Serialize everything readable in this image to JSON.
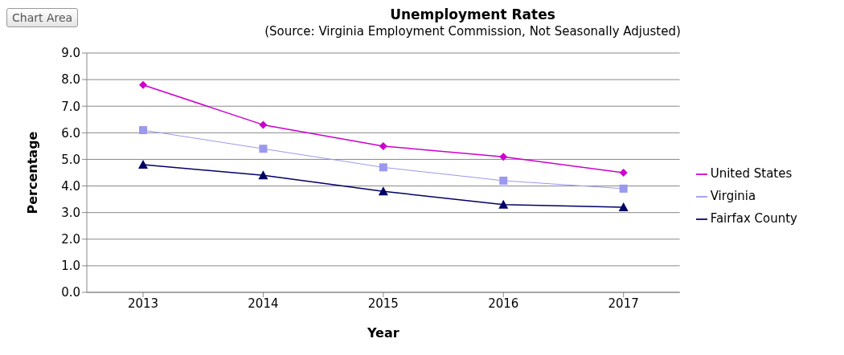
{
  "chart_data": {
    "type": "line",
    "title": "Unemployment Rates",
    "subtitle": "(Source: Virginia Employment Commission, Not Seasonally Adjusted)",
    "xlabel": "Year",
    "ylabel": "Percentage",
    "annotations": [
      "Chart Area"
    ],
    "categories": [
      "2013",
      "2014",
      "2015",
      "2016",
      "2017"
    ],
    "series": [
      {
        "name": "United States",
        "color": "#cc00cc",
        "marker": "diamond",
        "values": [
          7.8,
          6.3,
          5.5,
          5.1,
          4.5
        ]
      },
      {
        "name": "Virginia",
        "color": "#9999ee",
        "marker": "square",
        "values": [
          6.1,
          5.4,
          4.7,
          4.2,
          3.9
        ]
      },
      {
        "name": "Fairfax County",
        "color": "#000066",
        "marker": "triangle",
        "values": [
          4.8,
          4.4,
          3.8,
          3.3,
          3.2
        ]
      }
    ],
    "ylim": [
      0,
      9
    ],
    "yticks": [
      {
        "value": 0,
        "label": "0.0"
      },
      {
        "value": 1,
        "label": "1.0"
      },
      {
        "value": 2,
        "label": "2.0"
      },
      {
        "value": 3,
        "label": "3.0"
      },
      {
        "value": 4,
        "label": "4.0"
      },
      {
        "value": 5,
        "label": "5.0"
      },
      {
        "value": 6,
        "label": "6.0"
      },
      {
        "value": 7,
        "label": "7.0"
      },
      {
        "value": 8,
        "label": "8.0"
      },
      {
        "value": 9,
        "label": "9.0"
      }
    ],
    "grid": "y",
    "legend": "right",
    "line_style": "solid"
  }
}
